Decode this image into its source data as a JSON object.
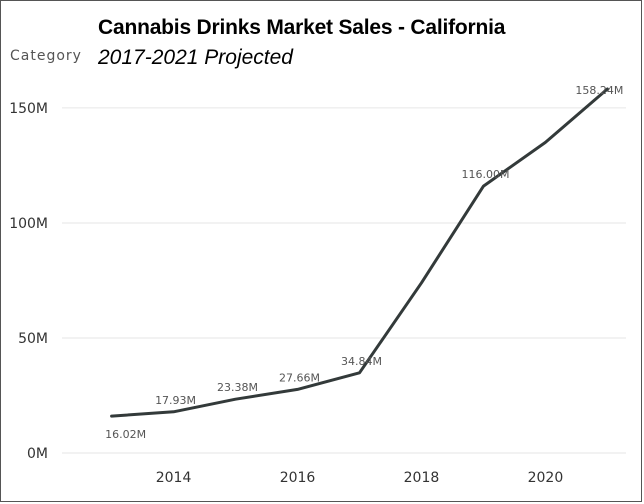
{
  "header": {
    "title": "Cannabis Drinks Market Sales - California",
    "subtitle": "2017-2021 Projected",
    "legend_label": "Category"
  },
  "chart_data": {
    "type": "line",
    "title": "Cannabis Drinks Market Sales - California",
    "subtitle": "2017-2021 Projected",
    "xlabel": "",
    "ylabel": "",
    "x": [
      2013,
      2014,
      2015,
      2016,
      2017,
      2018,
      2019,
      2020,
      2021
    ],
    "series": [
      {
        "values": [
          16.02,
          17.93,
          23.38,
          27.66,
          34.84,
          74.0,
          116.0,
          135.0,
          158.24
        ],
        "labels": [
          "16.02M",
          "17.93M",
          "23.38M",
          "27.66M",
          "34.84M",
          "",
          "116.00M",
          "",
          "158.24M"
        ]
      }
    ],
    "xlim": [
      2012.2,
      2021.3
    ],
    "ylim": [
      0,
      163
    ],
    "y_ticks": [
      {
        "value": 0,
        "label": "0M"
      },
      {
        "value": 50,
        "label": "50M"
      },
      {
        "value": 100,
        "label": "100M"
      },
      {
        "value": 150,
        "label": "150M"
      }
    ],
    "x_ticks": [
      {
        "value": 2014,
        "label": "2014"
      },
      {
        "value": 2016,
        "label": "2016"
      },
      {
        "value": 2018,
        "label": "2018"
      },
      {
        "value": 2020,
        "label": "2020"
      }
    ],
    "grid": true,
    "line_color": "#333a3a",
    "grid_color": "#e6e6e6"
  }
}
